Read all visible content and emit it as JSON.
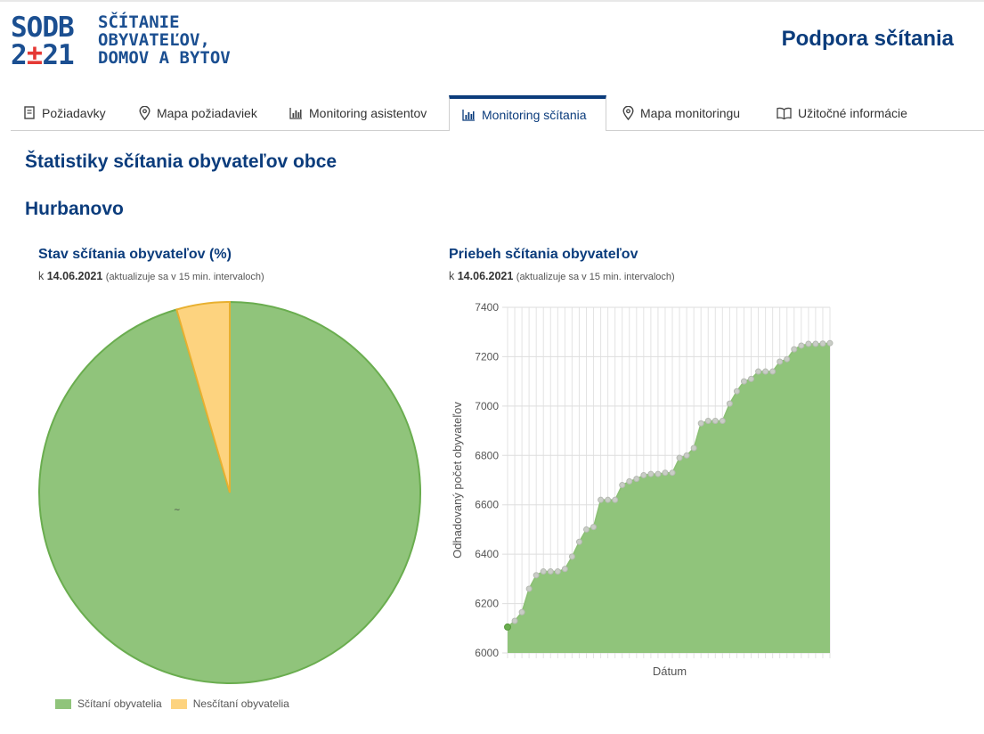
{
  "header": {
    "logo_code_line1": "SODB",
    "logo_code_line2_a": "2",
    "logo_code_line2_b": "±",
    "logo_code_line2_c": "21",
    "logo_text": [
      "SČÍTANIE",
      "OBYVATEĽOV,",
      "DOMOV A BYTOV"
    ],
    "title": "Podpora sčítania",
    "brand_color": "#1b4f91",
    "accent_color": "#e53935"
  },
  "tabs": [
    {
      "label": "Požiadavky",
      "icon": "document-icon",
      "active": false
    },
    {
      "label": "Mapa požiadaviek",
      "icon": "map-pin-icon",
      "active": false
    },
    {
      "label": "Monitoring asistentov",
      "icon": "bar-chart-icon",
      "active": false
    },
    {
      "label": "Monitoring sčítania",
      "icon": "bar-chart-icon",
      "active": true
    },
    {
      "label": "Mapa monitoringu",
      "icon": "map-pin-icon",
      "active": false
    },
    {
      "label": "Užitočné informácie",
      "icon": "book-icon",
      "active": false
    }
  ],
  "page": {
    "title": "Štatistiky sčítania obyvateľov obce",
    "city": "Hurbanovo"
  },
  "pie_panel": {
    "title": "Stav sčítania obyvateľov (%)",
    "date_prefix": "k",
    "date": "14.06.2021",
    "note": "(aktualizuje sa v 15 min. intervaloch)",
    "label_fragment": "~"
  },
  "line_panel": {
    "title": "Priebeh sčítania obyvateľov",
    "date_prefix": "k",
    "date": "14.06.2021",
    "note": "(aktualizuje sa v 15 min. intervaloch)"
  },
  "chart_data": [
    {
      "type": "pie",
      "series": [
        {
          "name": "Sčítaní obyvatelia",
          "value": 95.5,
          "color": "#90c47b",
          "border": "#6aad4f"
        },
        {
          "name": "Nesčítaní obyvatelia",
          "value": 4.5,
          "color": "#fdd37f",
          "border": "#e8b030"
        }
      ],
      "legend_position": "bottom-left"
    },
    {
      "type": "area",
      "xlabel": "Dátum",
      "ylabel": "Odhadovaný počet obyvateľov",
      "ylim": [
        6000,
        7400
      ],
      "yticks": [
        6000,
        6200,
        6400,
        6600,
        6800,
        7000,
        7200,
        7400
      ],
      "grid": true,
      "color": "#90c47b",
      "values": [
        6105,
        6130,
        6165,
        6260,
        6315,
        6330,
        6330,
        6330,
        6340,
        6390,
        6450,
        6500,
        6510,
        6620,
        6620,
        6620,
        6680,
        6695,
        6705,
        6720,
        6725,
        6725,
        6730,
        6730,
        6790,
        6800,
        6830,
        6930,
        6940,
        6940,
        6940,
        7010,
        7060,
        7100,
        7110,
        7140,
        7140,
        7140,
        7180,
        7190,
        7230,
        7245,
        7252,
        7252,
        7253,
        7255
      ]
    }
  ]
}
